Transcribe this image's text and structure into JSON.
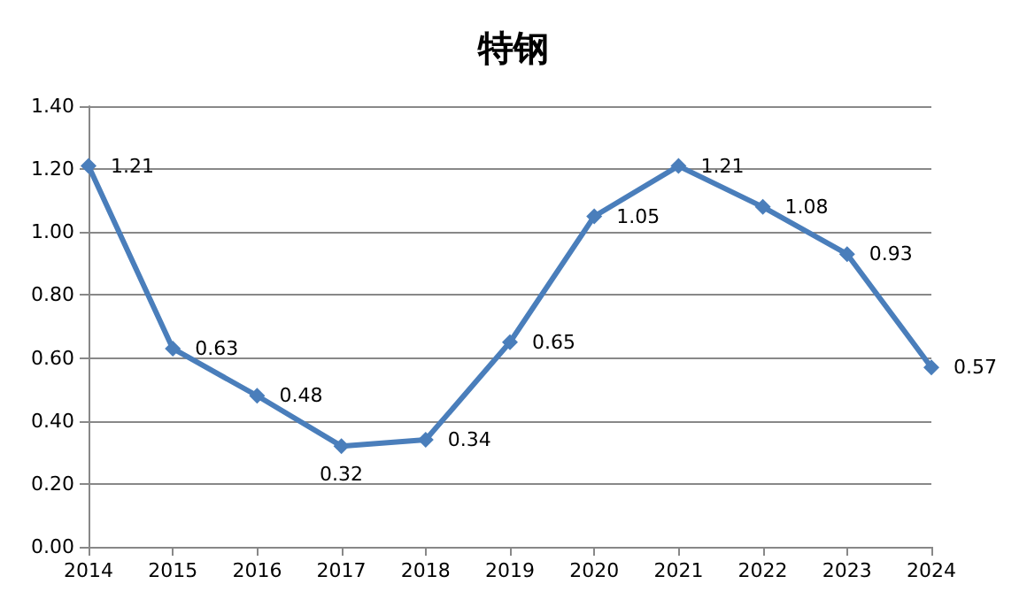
{
  "chart_data": {
    "type": "line",
    "title": "特钢",
    "categories": [
      "2014",
      "2015",
      "2016",
      "2017",
      "2018",
      "2019",
      "2020",
      "2021",
      "2022",
      "2023",
      "2024"
    ],
    "series": [
      {
        "color": "#4a7ebb",
        "values": [
          1.21,
          0.63,
          0.48,
          0.32,
          0.34,
          0.65,
          1.05,
          1.21,
          1.08,
          0.93,
          0.57
        ]
      }
    ],
    "ylim": [
      0,
      1.4
    ],
    "yticks": [
      {
        "value": 0,
        "label": "0.00"
      },
      {
        "value": 0.2,
        "label": "0.20"
      },
      {
        "value": 0.4,
        "label": "0.40"
      },
      {
        "value": 0.6,
        "label": "0.60"
      },
      {
        "value": 0.8,
        "label": "0.80"
      },
      {
        "value": 1,
        "label": "1.00"
      },
      {
        "value": 1.2,
        "label": "1.20"
      },
      {
        "value": 1.4,
        "label": "1.40"
      }
    ],
    "grid": "y",
    "marker": "diamond",
    "line_style": "solid",
    "data_labels": true
  }
}
